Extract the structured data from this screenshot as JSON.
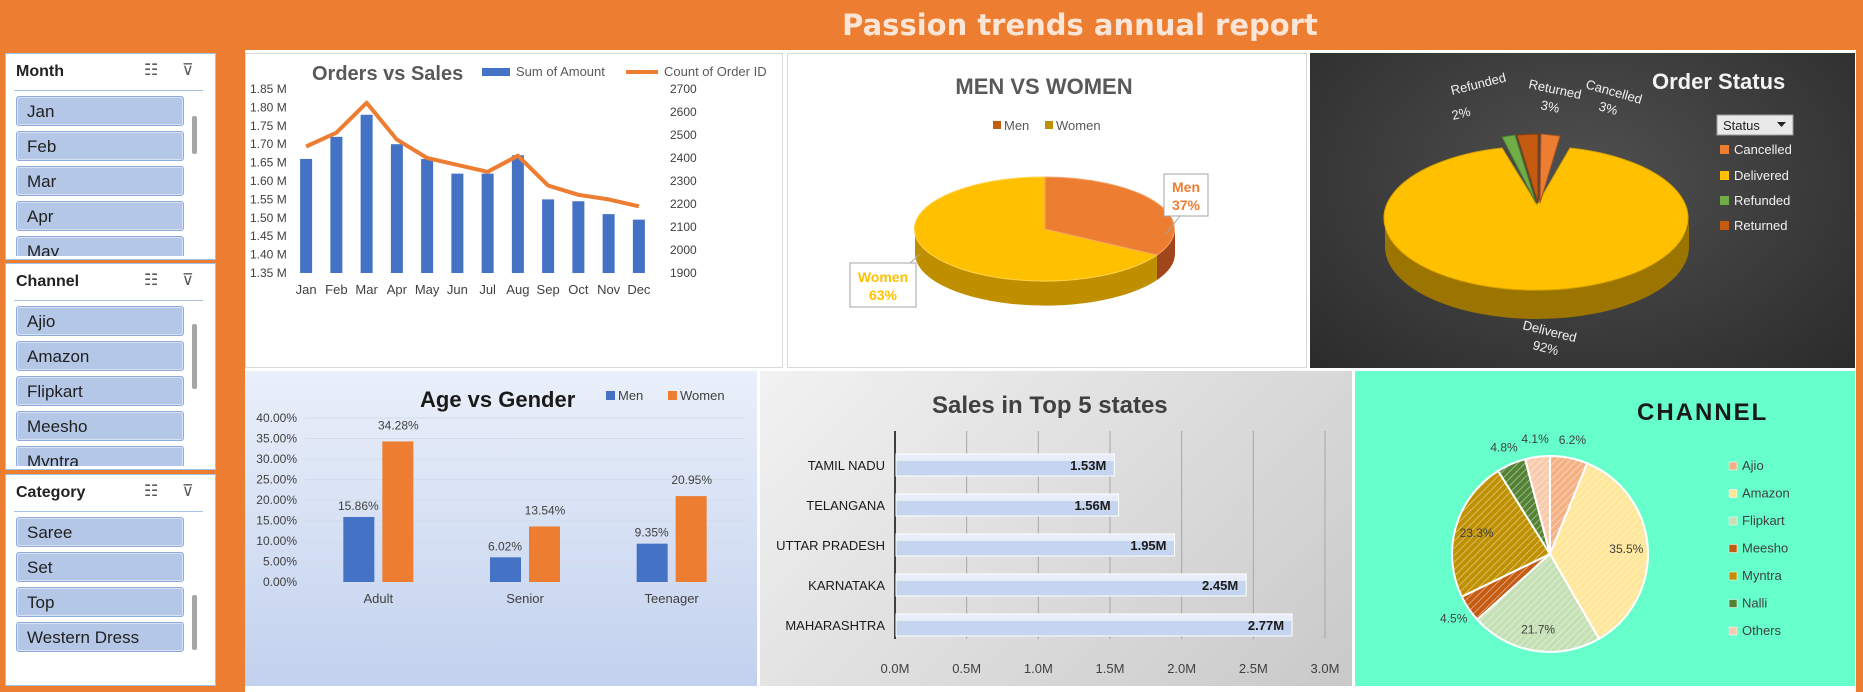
{
  "report_title": "Passion trends annual report",
  "slicers": {
    "month": {
      "title": "Month",
      "items": [
        "Jan",
        "Feb",
        "Mar",
        "Apr",
        "May"
      ]
    },
    "channel": {
      "title": "Channel",
      "items": [
        "Ajio",
        "Amazon",
        "Flipkart",
        "Meesho",
        "Myntra"
      ]
    },
    "category": {
      "title": "Category",
      "items": [
        "Saree",
        "Set",
        "Top",
        "Western Dress"
      ]
    }
  },
  "icons": [
    "multi-select-icon",
    "clear-filter-icon",
    "dropdown-arrow-icon"
  ],
  "colors": {
    "accent_orange": "#ED7D31",
    "blue": "#4472C4",
    "gold": "#FFC000",
    "green": "#70AD47",
    "mint": "#66FFCC",
    "dark_panel": "#404040"
  },
  "orders_vs_sales": {
    "title": "Orders vs Sales",
    "legend": [
      "Sum of Amount",
      "Count of Order ID"
    ],
    "left_ticks": [
      "1.85 M",
      "1.80 M",
      "1.75 M",
      "1.70 M",
      "1.65 M",
      "1.60 M",
      "1.55 M",
      "1.50 M",
      "1.45 M",
      "1.40 M",
      "1.35 M"
    ],
    "right_ticks": [
      "2700",
      "2600",
      "2500",
      "2400",
      "2300",
      "2200",
      "2100",
      "2000",
      "1900"
    ],
    "months": [
      "Jan",
      "Feb",
      "Mar",
      "Apr",
      "May",
      "Jun",
      "Jul",
      "Aug",
      "Sep",
      "Oct",
      "Nov",
      "Dec"
    ]
  },
  "men_vs_women": {
    "title": "MEN VS WOMEN",
    "legend": [
      "Men",
      "Women"
    ],
    "men_label": "Men",
    "men_pct": "37%",
    "women_label": "Women",
    "women_pct": "63%"
  },
  "order_status": {
    "title": "Order Status",
    "filter_label": "Status",
    "legend": [
      "Cancelled",
      "Delivered",
      "Refunded",
      "Returned"
    ],
    "labels": {
      "refunded": "Refunded",
      "refunded_pct": "2%",
      "returned": "Returned",
      "returned_pct": "3%",
      "cancelled": "Cancelled",
      "cancelled_pct": "3%",
      "delivered": "Delivered",
      "delivered_pct": "92%"
    }
  },
  "age_vs_gender": {
    "title": "Age vs Gender",
    "legend": [
      "Men",
      "Women"
    ],
    "y_ticks": [
      "40.00%",
      "35.00%",
      "30.00%",
      "25.00%",
      "20.00%",
      "15.00%",
      "10.00%",
      "5.00%",
      "0.00%"
    ],
    "data_labels": [
      "15.86%",
      "34.28%",
      "6.02%",
      "13.54%",
      "9.35%",
      "20.95%"
    ]
  },
  "top5_states": {
    "title": "Sales in Top 5 states",
    "x_ticks": [
      "0.0M",
      "0.5M",
      "1.0M",
      "1.5M",
      "2.0M",
      "2.5M",
      "3.0M"
    ],
    "data_labels": [
      "1.53M",
      "1.56M",
      "1.95M",
      "2.45M",
      "2.77M"
    ]
  },
  "channel_chart": {
    "title": "CHANNEL",
    "legend": [
      "Ajio",
      "Amazon",
      "Flipkart",
      "Meesho",
      "Myntra",
      "Nalli",
      "Others"
    ],
    "labels": [
      "6.2%",
      "35.5%",
      "21.7%",
      "4.5%",
      "23.3%",
      "4.8%",
      "4.1%"
    ]
  },
  "chart_data": [
    {
      "type": "bar",
      "title": "Orders vs Sales",
      "categories": [
        "Jan",
        "Feb",
        "Mar",
        "Apr",
        "May",
        "Jun",
        "Jul",
        "Aug",
        "Sep",
        "Oct",
        "Nov",
        "Dec"
      ],
      "series": [
        {
          "name": "Sum of Amount",
          "type": "bar",
          "axis": "left",
          "values": [
            1.66,
            1.72,
            1.78,
            1.7,
            1.66,
            1.62,
            1.62,
            1.67,
            1.55,
            1.545,
            1.51,
            1.495
          ]
        },
        {
          "name": "Count of Order ID",
          "type": "line",
          "axis": "right",
          "values": [
            2450,
            2510,
            2640,
            2480,
            2400,
            2370,
            2340,
            2410,
            2280,
            2240,
            2220,
            2190
          ]
        }
      ],
      "ylim": [
        1.35,
        1.85
      ],
      "y2lim": [
        1900,
        2700
      ],
      "legend": "top"
    },
    {
      "type": "pie",
      "title": "MEN VS WOMEN",
      "categories": [
        "Men",
        "Women"
      ],
      "values": [
        37,
        63
      ],
      "legend": "top"
    },
    {
      "type": "pie",
      "title": "Order Status",
      "categories": [
        "Cancelled",
        "Delivered",
        "Refunded",
        "Returned"
      ],
      "values": [
        3,
        92,
        2,
        3
      ],
      "legend": "right"
    },
    {
      "type": "bar",
      "title": "Age vs Gender",
      "categories": [
        "Adult",
        "Senior",
        "Teenager"
      ],
      "series": [
        {
          "name": "Men",
          "values": [
            15.86,
            6.02,
            9.35
          ]
        },
        {
          "name": "Women",
          "values": [
            34.28,
            13.54,
            20.95
          ]
        }
      ],
      "ylim": [
        0,
        40
      ],
      "legend": "top"
    },
    {
      "type": "bar",
      "title": "Sales in Top 5 states",
      "orientation": "horizontal",
      "categories": [
        "TAMIL NADU",
        "TELANGANA",
        "UTTAR PRADESH",
        "KARNATAKA",
        "MAHARASHTRA"
      ],
      "values": [
        1.53,
        1.56,
        1.95,
        2.45,
        2.77
      ],
      "xlim": [
        0,
        3.0
      ],
      "grid": true
    },
    {
      "type": "pie",
      "title": "CHANNEL",
      "categories": [
        "Ajio",
        "Amazon",
        "Flipkart",
        "Meesho",
        "Myntra",
        "Nalli",
        "Others"
      ],
      "values": [
        6.2,
        35.5,
        21.7,
        4.5,
        23.3,
        4.8,
        4.1
      ],
      "legend": "right"
    }
  ]
}
